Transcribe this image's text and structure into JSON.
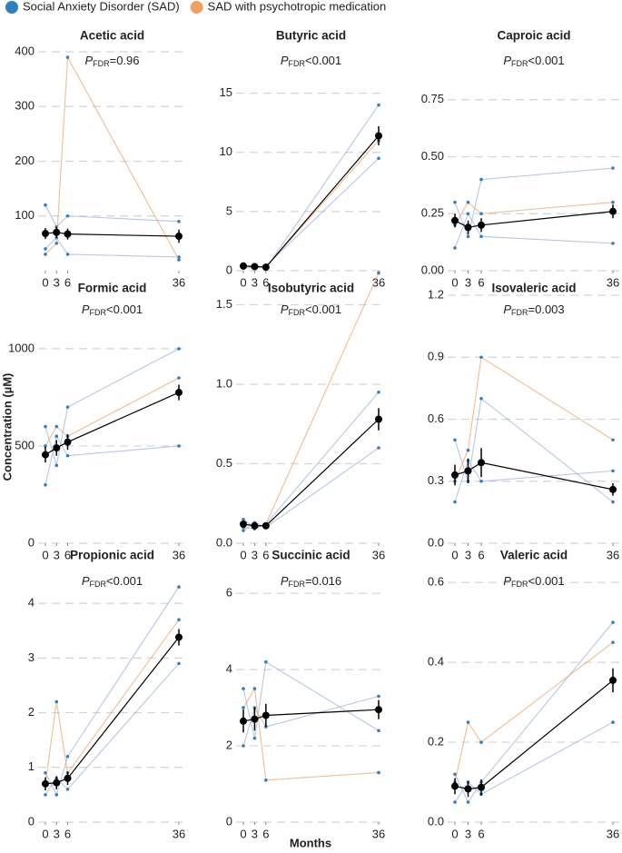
{
  "legend": [
    {
      "name": "Social Anxiety Disorder (SAD)",
      "color": "#2f7fc1"
    },
    {
      "name": "SAD with psychotropic medication",
      "color": "#f0a060"
    }
  ],
  "y_label": "Concentration (µM)",
  "x_label": "Months",
  "chart_data": [
    {
      "type": "line",
      "title": "Acetic acid",
      "p": "P",
      "p_sub": "FDR",
      "p_text": "=0.96",
      "x": [
        0,
        3,
        6,
        36
      ],
      "xlim": [
        0,
        36
      ],
      "xticks": [
        0,
        3,
        6,
        36
      ],
      "ylim": [
        0,
        400
      ],
      "yticks": [
        100,
        200,
        300,
        400
      ],
      "grid": true,
      "mean": {
        "color": "#000000",
        "values": [
          68,
          70,
          67,
          63
        ],
        "errors": [
          10,
          10,
          10,
          12
        ]
      },
      "sad_subjects": [
        [
          40,
          60,
          30,
          25
        ],
        [
          120,
          80,
          100,
          90
        ]
      ],
      "medicated_subjects": [
        [
          30,
          50,
          390,
          20
        ]
      ]
    },
    {
      "type": "line",
      "title": "Butyric acid",
      "p": "P",
      "p_sub": "FDR",
      "p_text": "<0.001",
      "x": [
        0,
        3,
        6,
        36
      ],
      "xlim": [
        0,
        36
      ],
      "xticks": [
        0,
        3,
        6,
        36
      ],
      "ylim": [
        0,
        18.5
      ],
      "yticks": [
        0,
        5,
        10,
        15
      ],
      "grid": true,
      "mean": {
        "color": "#000000",
        "values": [
          0.4,
          0.35,
          0.3,
          11.4
        ],
        "errors": [
          0.1,
          0.1,
          0.1,
          0.8
        ]
      },
      "sad_subjects": [
        [
          0.3,
          0.5,
          0.2,
          14
        ],
        [
          0.5,
          0.2,
          0.4,
          9.5
        ]
      ],
      "medicated_subjects": [
        [
          0.2,
          0.3,
          0.3,
          11
        ]
      ]
    },
    {
      "type": "line",
      "title": "Caproic acid",
      "p": "P",
      "p_sub": "FDR",
      "p_text": "<0.001",
      "x": [
        0,
        3,
        6,
        36
      ],
      "xlim": [
        0,
        36
      ],
      "xticks": [
        0,
        3,
        6,
        36
      ],
      "ylim": [
        0,
        0.96
      ],
      "yticks": [
        {
          "value": 0,
          "label": "0.00"
        },
        {
          "value": 0.25,
          "label": "0.25"
        },
        {
          "value": 0.5,
          "label": "0.50"
        },
        {
          "value": 0.75,
          "label": "0.75"
        }
      ],
      "grid": true,
      "mean": {
        "color": "#000000",
        "values": [
          0.22,
          0.19,
          0.2,
          0.26
        ],
        "errors": [
          0.03,
          0.03,
          0.03,
          0.03
        ]
      },
      "sad_subjects": [
        [
          0.3,
          0.15,
          0.4,
          0.45
        ],
        [
          0.1,
          0.25,
          0.15,
          0.12
        ]
      ],
      "medicated_subjects": [
        [
          0.2,
          0.3,
          0.25,
          0.3
        ]
      ]
    },
    {
      "type": "line",
      "title": "Formic acid",
      "p": "P",
      "p_sub": "FDR",
      "p_text": "<0.001",
      "x": [
        0,
        3,
        6,
        36
      ],
      "xlim": [
        0,
        36
      ],
      "xticks": [
        0,
        3,
        6,
        36
      ],
      "ylim": [
        0,
        1275
      ],
      "yticks": [
        0,
        500,
        1000
      ],
      "grid": true,
      "mean": {
        "color": "#000000",
        "values": [
          455,
          490,
          520,
          775
        ],
        "errors": [
          40,
          40,
          40,
          40
        ]
      },
      "sad_subjects": [
        [
          600,
          400,
          700,
          1000
        ],
        [
          300,
          550,
          450,
          500
        ]
      ],
      "medicated_subjects": [
        [
          500,
          600,
          550,
          850
        ]
      ]
    },
    {
      "type": "line",
      "title": "Isobutyric acid",
      "p": "P",
      "p_sub": "FDR",
      "p_text": "<0.001",
      "x": [
        0,
        3,
        6,
        36
      ],
      "xlim": [
        0,
        36
      ],
      "xticks": [
        0,
        3,
        6,
        36
      ],
      "ylim": [
        0,
        1.56
      ],
      "yticks": [
        {
          "value": 0,
          "label": "0.0"
        },
        {
          "value": 0.5,
          "label": "0.5"
        },
        {
          "value": 1,
          "label": "1.0"
        },
        {
          "value": 1.5,
          "label": "1.5"
        }
      ],
      "grid": true,
      "mean": {
        "color": "#000000",
        "values": [
          0.12,
          0.11,
          0.11,
          0.78
        ],
        "errors": [
          0.02,
          0.02,
          0.02,
          0.07
        ]
      },
      "sad_subjects": [
        [
          0.15,
          0.1,
          0.12,
          0.95
        ],
        [
          0.08,
          0.13,
          0.1,
          0.6
        ]
      ],
      "medicated_subjects": [
        [
          0.1,
          0.09,
          0.12,
          1.7
        ]
      ]
    },
    {
      "type": "line",
      "title": "Isovaleric acid",
      "p": "P",
      "p_sub": "FDR",
      "p_text": "=0.003",
      "x": [
        0,
        3,
        6,
        36
      ],
      "xlim": [
        0,
        36
      ],
      "xticks": [
        0,
        3,
        6,
        36
      ],
      "ylim": [
        0,
        1.2
      ],
      "yticks": [
        {
          "value": 0,
          "label": "0.0"
        },
        0.3,
        0.6,
        0.9,
        1.2
      ],
      "grid": true,
      "mean": {
        "color": "#000000",
        "values": [
          0.33,
          0.35,
          0.39,
          0.26
        ],
        "errors": [
          0.05,
          0.06,
          0.07,
          0.03
        ]
      },
      "sad_subjects": [
        [
          0.5,
          0.3,
          0.7,
          0.2
        ],
        [
          0.2,
          0.4,
          0.3,
          0.35
        ]
      ],
      "medicated_subjects": [
        [
          0.3,
          0.45,
          0.9,
          0.5
        ]
      ]
    },
    {
      "type": "line",
      "title": "Propionic acid",
      "p": "P",
      "p_sub": "FDR",
      "p_text": "<0.001",
      "x": [
        0,
        3,
        6,
        36
      ],
      "xlim": [
        0,
        36
      ],
      "xticks": [
        0,
        3,
        6,
        36
      ],
      "ylim": [
        0,
        4.6
      ],
      "yticks": [
        0,
        1,
        2,
        3,
        4
      ],
      "grid": true,
      "mean": {
        "color": "#000000",
        "values": [
          0.7,
          0.72,
          0.8,
          3.38
        ],
        "errors": [
          0.12,
          0.12,
          0.12,
          0.15
        ]
      },
      "sad_subjects": [
        [
          0.9,
          0.5,
          1.2,
          4.3
        ],
        [
          0.5,
          0.8,
          0.6,
          2.9
        ]
      ],
      "medicated_subjects": [
        [
          0.7,
          2.2,
          0.9,
          3.7
        ]
      ]
    },
    {
      "type": "line",
      "title": "Succinic acid",
      "p": "P",
      "p_sub": "FDR",
      "p_text": "=0.016",
      "x": [
        0,
        3,
        6,
        36
      ],
      "xlim": [
        0,
        36
      ],
      "xticks": [
        0,
        3,
        6,
        36
      ],
      "ylim": [
        0,
        6.6
      ],
      "yticks": [
        0,
        2,
        4,
        6
      ],
      "grid": true,
      "mean": {
        "color": "#000000",
        "values": [
          2.65,
          2.7,
          2.8,
          2.95
        ],
        "errors": [
          0.3,
          0.3,
          0.3,
          0.25
        ]
      },
      "sad_subjects": [
        [
          3.5,
          2.2,
          4.2,
          2.4
        ],
        [
          2.0,
          3.0,
          2.5,
          3.3
        ]
      ],
      "medicated_subjects": [
        [
          3.0,
          3.5,
          1.1,
          1.3
        ]
      ]
    },
    {
      "type": "line",
      "title": "Valeric acid",
      "p": "P",
      "p_sub": "FDR",
      "p_text": "<0.001",
      "x": [
        0,
        3,
        6,
        36
      ],
      "xlim": [
        0,
        36
      ],
      "xticks": [
        0,
        3,
        6,
        36
      ],
      "ylim": [
        0,
        0.63
      ],
      "yticks": [
        {
          "value": 0,
          "label": "0.0"
        },
        0.2,
        0.4,
        0.6
      ],
      "grid": true,
      "mean": {
        "color": "#000000",
        "values": [
          0.09,
          0.083,
          0.087,
          0.355
        ],
        "errors": [
          0.02,
          0.02,
          0.02,
          0.03
        ]
      },
      "sad_subjects": [
        [
          0.12,
          0.05,
          0.1,
          0.5
        ],
        [
          0.05,
          0.1,
          0.07,
          0.25
        ]
      ],
      "medicated_subjects": [
        [
          0.1,
          0.25,
          0.2,
          0.45
        ]
      ]
    }
  ]
}
